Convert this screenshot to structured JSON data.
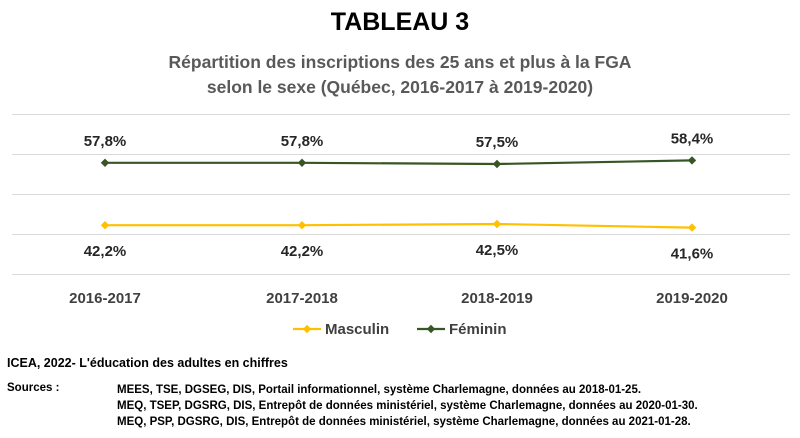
{
  "title": "TABLEAU 3",
  "subtitle_line1": "Répartition des inscriptions des 25 ans et plus à la FGA",
  "subtitle_line2": "selon le sexe (Québec, 2016-2017 à 2019-2020)",
  "chart_data": {
    "type": "line",
    "categories": [
      "2016-2017",
      "2017-2018",
      "2018-2019",
      "2019-2020"
    ],
    "series": [
      {
        "name": "Masculin",
        "values": [
          42.2,
          42.2,
          42.5,
          41.6
        ],
        "labels": [
          "42,2%",
          "42,2%",
          "42,5%",
          "41,6%"
        ],
        "color": "#FFC000"
      },
      {
        "name": "Féminin",
        "values": [
          57.8,
          57.8,
          57.5,
          58.4
        ],
        "labels": [
          "57,8%",
          "57,8%",
          "57,5%",
          "58,4%"
        ],
        "color": "#375623"
      }
    ],
    "ylim": [
      30,
      70
    ],
    "grid": true,
    "legend": "bottom"
  },
  "source_title": "ICEA, 2022- L'éducation des adultes en chiffres",
  "sources_label": "Sources :",
  "sources": [
    "MEES, TSE, DGSEG, DIS, Portail informationnel, système Charlemagne, données au 2018-01-25.",
    "MEQ, TSEP, DGSRG, DIS, Entrepôt de données ministériel, système Charlemagne, données au 2020-01-30.",
    "MEQ, PSP, DGSRG, DIS, Entrepôt de données ministériel, système Charlemagne, données au 2021-01-28."
  ]
}
